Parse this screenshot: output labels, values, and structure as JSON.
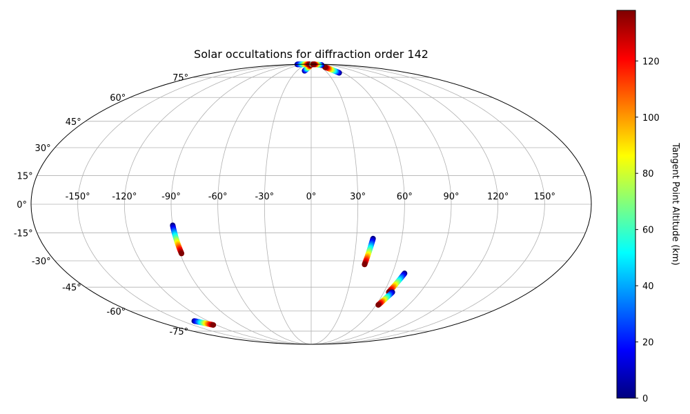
{
  "chart_data": {
    "type": "scatter",
    "projection": "mollweide",
    "title": "Solar occultations for diffraction order 142",
    "grid": true,
    "longitude_ticks": [
      -150,
      -120,
      -90,
      -60,
      -30,
      0,
      30,
      60,
      90,
      120,
      150
    ],
    "longitude_tick_labels": [
      "-150°",
      "-120°",
      "-90°",
      "-60°",
      "-30°",
      "0°",
      "30°",
      "60°",
      "90°",
      "120°",
      "150°"
    ],
    "latitude_ticks": [
      75,
      60,
      45,
      30,
      15,
      0,
      -15,
      -30,
      -45,
      -60,
      -75
    ],
    "latitude_tick_labels": [
      "75°",
      "60°",
      "45°",
      "30°",
      "15°",
      "0°",
      "-15°",
      "-30°",
      "-45°",
      "-60°",
      "-75°"
    ],
    "colorbar": {
      "label": "Tangent Point Altitude (km)",
      "colormap": "jet",
      "range": [
        0,
        138
      ],
      "ticks": [
        0,
        20,
        40,
        60,
        80,
        100,
        120
      ],
      "tick_labels": [
        "0",
        "20",
        "40",
        "60",
        "80",
        "100",
        "120"
      ]
    },
    "tracks": [
      {
        "lon_start": -90,
        "lat_start": -11,
        "lon_end": -89,
        "lat_end": -26,
        "alt_start": 0,
        "alt_end": 138
      },
      {
        "lon_start": 41,
        "lat_start": -18,
        "lon_end": 38,
        "lat_end": -32,
        "alt_start": 0,
        "alt_end": 138
      },
      {
        "lon_start": 69,
        "lat_start": -37,
        "lon_end": 64,
        "lat_end": -48,
        "alt_start": 0,
        "alt_end": 138
      },
      {
        "lon_start": 67,
        "lat_start": -48,
        "lon_end": 62,
        "lat_end": -56,
        "alt_start": 0,
        "alt_end": 138
      },
      {
        "lon_start": -136,
        "lat_start": -67,
        "lon_end": -124,
        "lat_end": -70,
        "alt_start": 0,
        "alt_end": 138
      },
      {
        "lon_start": 52,
        "lat_start": 79,
        "lon_end": 43,
        "lat_end": 85,
        "alt_start": 0,
        "alt_end": 138
      },
      {
        "lon_start": -14,
        "lat_start": 81,
        "lon_end": -3,
        "lat_end": 88,
        "alt_start": 0,
        "alt_end": 138
      },
      {
        "lon_start": -160,
        "lat_start": 89.3,
        "lon_end": -30,
        "lat_end": 89.6,
        "alt_start": 0,
        "alt_end": 138
      },
      {
        "lon_start": 60,
        "lat_start": 88,
        "lon_end": 40,
        "lat_end": 89.6,
        "alt_start": 0,
        "alt_end": 138
      },
      {
        "lon_start": 10,
        "lat_start": 89.4,
        "lon_end": 25,
        "lat_end": 89.4,
        "alt_start": 0,
        "alt_end": 138
      }
    ]
  }
}
